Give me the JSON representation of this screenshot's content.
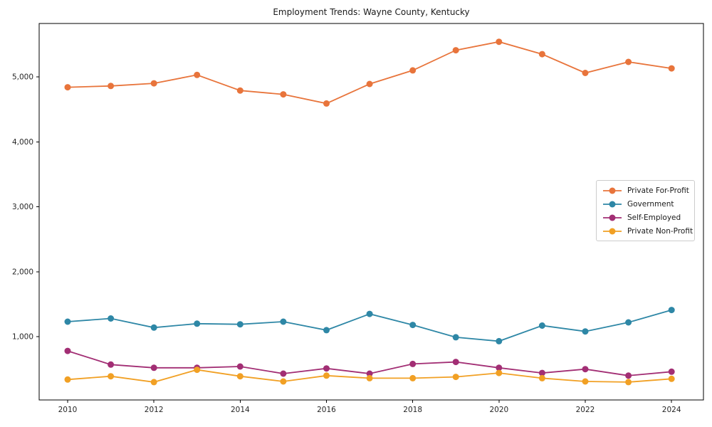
{
  "chart_data": {
    "type": "line",
    "title": "Employment Trends: Wayne County, Kentucky",
    "xlabel": "",
    "ylabel": "",
    "x": [
      2010,
      2011,
      2012,
      2013,
      2014,
      2015,
      2016,
      2017,
      2018,
      2019,
      2020,
      2021,
      2022,
      2023,
      2024
    ],
    "series": [
      {
        "name": "Private For-Profit",
        "color": "#E8743B",
        "values": [
          4840,
          4860,
          4900,
          5030,
          4790,
          4730,
          4590,
          4890,
          5100,
          5410,
          5540,
          5350,
          5060,
          5230,
          5130
        ]
      },
      {
        "name": "Government",
        "color": "#2E87A6",
        "values": [
          1230,
          1280,
          1140,
          1200,
          1190,
          1230,
          1100,
          1350,
          1180,
          990,
          930,
          1170,
          1080,
          1220,
          1410
        ]
      },
      {
        "name": "Self-Employed",
        "color": "#A22E74",
        "values": [
          780,
          570,
          520,
          520,
          540,
          430,
          510,
          430,
          580,
          610,
          520,
          440,
          500,
          400,
          460
        ]
      },
      {
        "name": "Private Non-Profit",
        "color": "#F1A024",
        "values": [
          340,
          390,
          300,
          490,
          390,
          310,
          400,
          360,
          360,
          380,
          440,
          360,
          310,
          300,
          350
        ]
      }
    ],
    "xticks": [
      2010,
      2012,
      2014,
      2016,
      2018,
      2020,
      2022,
      2024
    ],
    "yticks": [
      1000,
      2000,
      3000,
      4000,
      5000
    ],
    "ytick_labels": [
      "1,000",
      "2,000",
      "3,000",
      "4,000",
      "5,000"
    ],
    "xlim": [
      2009.34,
      2024.74
    ],
    "ylim": [
      25,
      5822
    ],
    "legend_position": "center-right",
    "grid": false,
    "axis_color": "#000000",
    "tick_label_color": "#262626"
  }
}
